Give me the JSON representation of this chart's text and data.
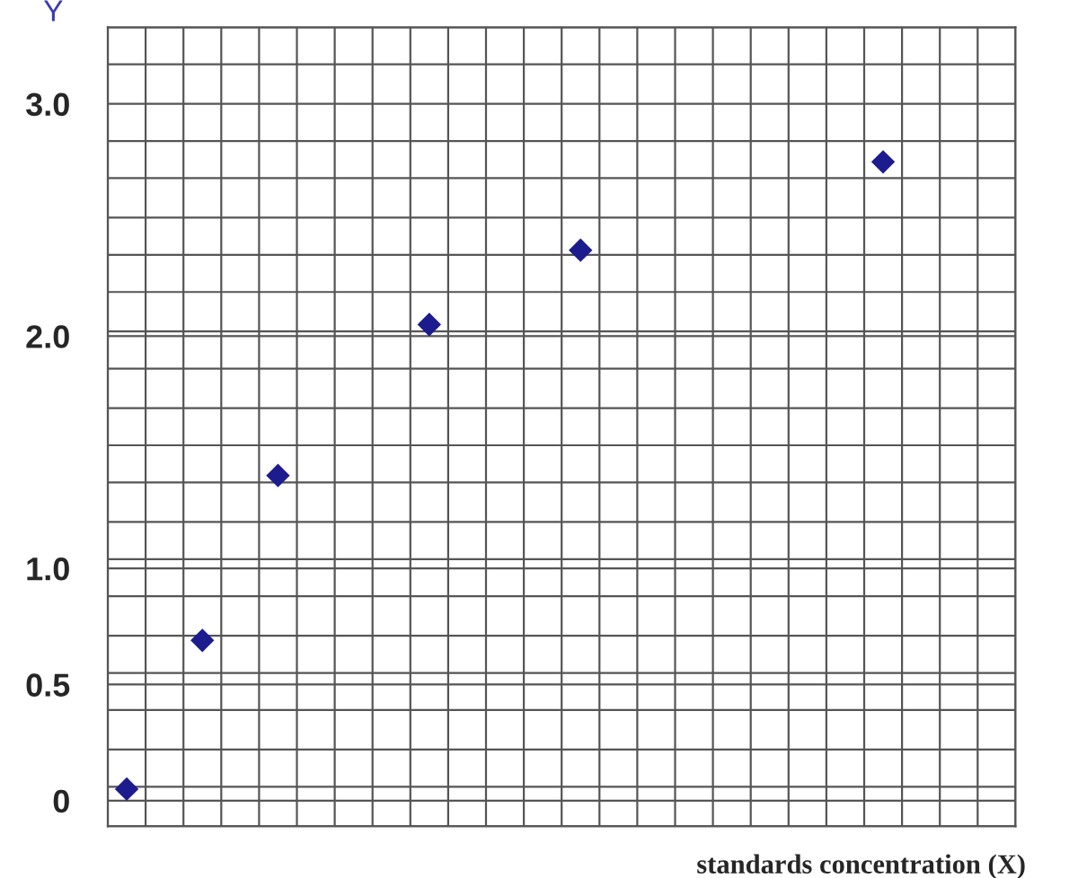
{
  "chart_data": {
    "type": "scatter",
    "xlabel": "standards concentration (X)",
    "ylabel": "Y",
    "categories": [
      null,
      null,
      null,
      null,
      null,
      null,
      null,
      null,
      null,
      null,
      null,
      null,
      null,
      null,
      null,
      null,
      null,
      null,
      null,
      null,
      null,
      null,
      null,
      null
    ],
    "values": [
      0.05,
      null,
      0.69,
      null,
      1.4,
      null,
      null,
      null,
      2.05,
      null,
      null,
      null,
      2.37,
      null,
      null,
      null,
      null,
      null,
      null,
      null,
      2.75,
      null,
      null,
      null
    ],
    "color": "#1c1c8f",
    "marker": "diamond",
    "grid": true,
    "ylim": [
      -0.11,
      3.33
    ],
    "yticks": [
      {
        "value": 0,
        "label": "0"
      },
      {
        "value": 0.5,
        "label": "0.5"
      },
      {
        "value": 1,
        "label": "1.0"
      },
      {
        "value": 2,
        "label": "2.0"
      },
      {
        "value": 3,
        "label": "3.0"
      },
      {
        "value": -0.11,
        "label": null
      },
      {
        "value": 0.06,
        "label": null
      },
      {
        "value": 0.22,
        "label": null
      },
      {
        "value": 0.39,
        "label": null
      },
      {
        "value": 0.55,
        "label": null
      },
      {
        "value": 0.71,
        "label": null
      },
      {
        "value": 0.88,
        "label": null
      },
      {
        "value": 1.04,
        "label": null
      },
      {
        "value": 1.2,
        "label": null
      },
      {
        "value": 1.37,
        "label": null
      },
      {
        "value": 1.53,
        "label": null
      },
      {
        "value": 1.69,
        "label": null
      },
      {
        "value": 1.86,
        "label": null
      },
      {
        "value": 2.02,
        "label": null
      },
      {
        "value": 2.19,
        "label": null
      },
      {
        "value": 2.35,
        "label": null
      },
      {
        "value": 2.51,
        "label": null
      },
      {
        "value": 2.68,
        "label": null
      },
      {
        "value": 2.84,
        "label": null
      },
      {
        "value": 3.17,
        "label": null
      },
      {
        "value": 3.33,
        "label": null
      }
    ]
  }
}
